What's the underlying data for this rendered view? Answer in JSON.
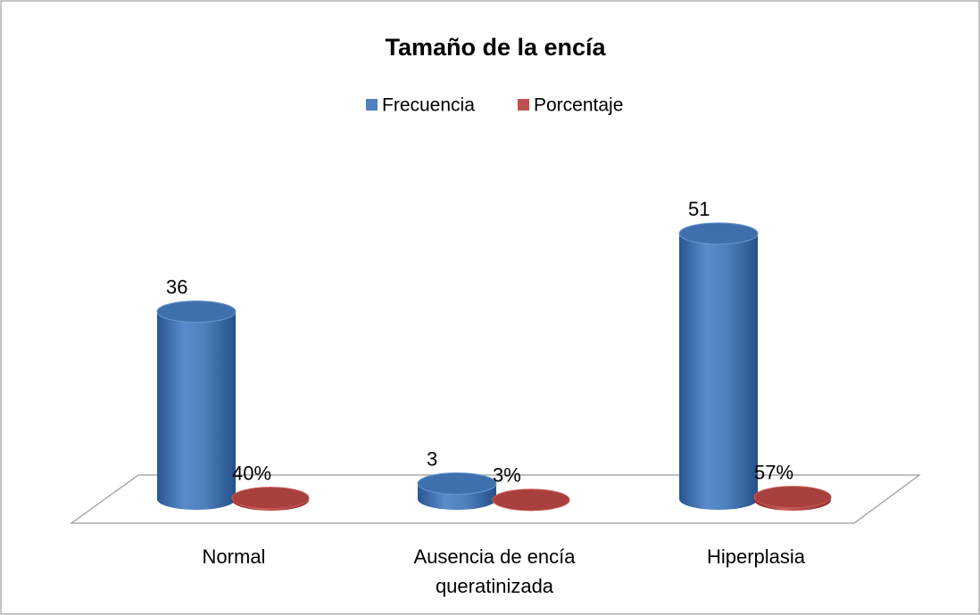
{
  "chart_data": {
    "type": "bar3d",
    "title": "Tamaño de la encía",
    "categories": [
      "Normal",
      "Ausencia de encía queratinizada",
      "Hiperplasia"
    ],
    "series": [
      {
        "name": "Frecuencia",
        "color": "#4f81bd",
        "values": [
          36,
          3,
          51
        ]
      },
      {
        "name": "Porcentaje",
        "color": "#c0504d",
        "values": [
          0.4,
          0.03,
          0.57
        ],
        "value_labels": [
          "40%",
          "3%",
          "57%"
        ]
      }
    ],
    "legend": "top"
  }
}
